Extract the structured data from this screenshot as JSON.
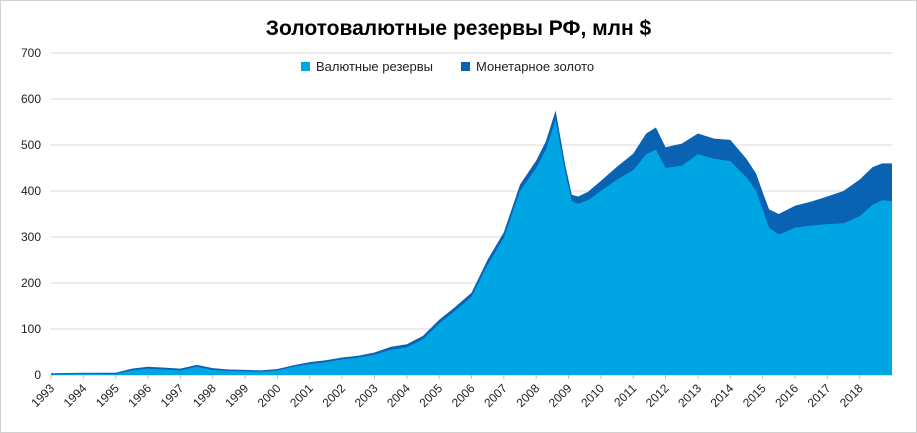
{
  "chart_data": {
    "type": "area",
    "title": "Золотовалютные резервы РФ, млн $",
    "legend_position": "top",
    "grid": true,
    "ylim": [
      0,
      700
    ],
    "xlim": [
      1993.0,
      2019.0
    ],
    "y_ticks": [
      0,
      100,
      200,
      300,
      400,
      500,
      600,
      700
    ],
    "x_ticks": [
      "1993",
      "1994",
      "1995",
      "1996",
      "1997",
      "1998",
      "1999",
      "2000",
      "2001",
      "2002",
      "2003",
      "2004",
      "2005",
      "2006",
      "2007",
      "2008",
      "2009",
      "2010",
      "2011",
      "2012",
      "2013",
      "2014",
      "2015",
      "2016",
      "2017",
      "2018"
    ],
    "x": [
      1993.0,
      1994.0,
      1995.0,
      1995.5,
      1996.0,
      1996.5,
      1997.0,
      1997.5,
      1998.0,
      1998.5,
      1999.0,
      1999.5,
      2000.0,
      2000.5,
      2001.0,
      2001.5,
      2002.0,
      2002.5,
      2003.0,
      2003.5,
      2004.0,
      2004.5,
      2005.0,
      2005.5,
      2006.0,
      2006.5,
      2007.0,
      2007.5,
      2008.0,
      2008.3,
      2008.6,
      2008.9,
      2009.1,
      2009.3,
      2009.6,
      2010.0,
      2010.5,
      2011.0,
      2011.4,
      2011.7,
      2012.0,
      2012.5,
      2013.0,
      2013.5,
      2014.0,
      2014.5,
      2014.8,
      2015.0,
      2015.2,
      2015.5,
      2016.0,
      2016.5,
      2017.0,
      2017.5,
      2018.0,
      2018.4,
      2018.7,
      2019.0
    ],
    "series": [
      {
        "name": "Валютные резервы",
        "color": "#00a6e4",
        "values": [
          1,
          3,
          2,
          10,
          14,
          12,
          10,
          18,
          11,
          9,
          8,
          7,
          10,
          18,
          24,
          28,
          34,
          38,
          44,
          55,
          60,
          78,
          112,
          140,
          170,
          240,
          298,
          400,
          450,
          490,
          555,
          440,
          378,
          372,
          380,
          400,
          425,
          445,
          480,
          490,
          450,
          455,
          480,
          470,
          465,
          430,
          400,
          360,
          320,
          305,
          320,
          325,
          328,
          330,
          345,
          370,
          380,
          378
        ]
      },
      {
        "name": "Монетарное золото",
        "color": "#0a62b3",
        "values": [
          3,
          2,
          3,
          4,
          4,
          4,
          4,
          4,
          4,
          3,
          3,
          3,
          3,
          3,
          4,
          4,
          4,
          4,
          5,
          6,
          7,
          7,
          8,
          8,
          9,
          11,
          12,
          14,
          16,
          18,
          20,
          16,
          14,
          16,
          18,
          22,
          28,
          36,
          45,
          48,
          45,
          48,
          45,
          44,
          46,
          40,
          38,
          38,
          40,
          45,
          48,
          52,
          60,
          70,
          80,
          82,
          80,
          82
        ]
      }
    ]
  }
}
